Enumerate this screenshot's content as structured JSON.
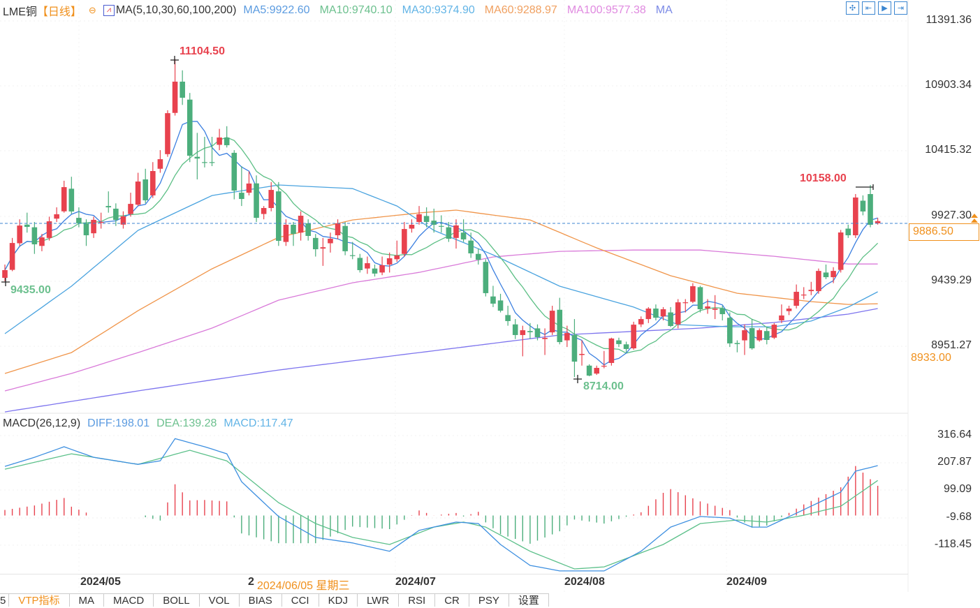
{
  "header": {
    "symbol": "LME铜",
    "period": "【日线】",
    "collapse_icon": "minus-circle-icon",
    "ma_icon": "ma-chart-icon",
    "ma_params": "MA(5,10,30,60,100,200)",
    "ma_values": [
      {
        "label": "MA5:9922.60",
        "color": "#5b9be0"
      },
      {
        "label": "MA10:9740.10",
        "color": "#6cc08e"
      },
      {
        "label": "MA30:9374.90",
        "color": "#62b4e6"
      },
      {
        "label": "MA60:9288.97",
        "color": "#f0a060"
      },
      {
        "label": "MA100:9577.38",
        "color": "#e08ae0"
      },
      {
        "label": "MA",
        "color": "#7b8ae6"
      }
    ]
  },
  "toolbar": [
    "crosshair-icon",
    "zoom-start-icon",
    "play-icon",
    "jump-end-icon"
  ],
  "macd_header": {
    "title": "MACD(26,12,9)",
    "diff": "DIFF:198.01",
    "dea": "DEA:139.28",
    "macd": "MACD:117.47"
  },
  "price_axis": {
    "ticks": [
      "11391.36",
      "10903.34",
      "10415.32",
      "9927.30",
      "9439.29",
      "8951.27"
    ],
    "current": "9886.50",
    "secondary": "8933.00"
  },
  "macd_axis": {
    "ticks": [
      "316.64",
      "207.87",
      "99.09",
      "-9.68",
      "-118.45"
    ]
  },
  "annotations": {
    "high": "11104.50",
    "low_start": "9435.00",
    "low": "8714.00",
    "recent_high": "10158.00"
  },
  "dates": {
    "may": "2024/05",
    "jun_partial": "2",
    "crosshair": "2024/06/05 星期三",
    "jul": "2024/07",
    "aug": "2024/08",
    "sep": "2024/09"
  },
  "tabs": [
    "5",
    "VTP指标",
    "MA",
    "MACD",
    "BOLL",
    "VOL",
    "BIAS",
    "CCI",
    "KDJ",
    "LWR",
    "RSI",
    "CR",
    "PSY",
    "设置"
  ],
  "colors": {
    "up": "#e8424e",
    "down": "#4cae7c",
    "diff": "#3d8fe0",
    "dea": "#5cc08a",
    "ma30": "#4aa3df",
    "ma60": "#f0954a",
    "ma100": "#d97ad9",
    "ma200": "#7d74ee",
    "ma5": "#3b7fe0",
    "ma10": "#5cbf85"
  },
  "chart_data": {
    "type": "candlestick",
    "title": "LME铜 日线",
    "ylim": [
      8500,
      11450
    ],
    "candles": [
      [
        9460,
        9560,
        9435,
        9518
      ],
      [
        9520,
        9760,
        9510,
        9722
      ],
      [
        9720,
        9900,
        9700,
        9853
      ],
      [
        9860,
        9950,
        9800,
        9843
      ],
      [
        9840,
        9880,
        9640,
        9712
      ],
      [
        9700,
        9790,
        9660,
        9764
      ],
      [
        9760,
        9920,
        9740,
        9885
      ],
      [
        9905,
        9990,
        9880,
        9938
      ],
      [
        9960,
        10190,
        9950,
        10142
      ],
      [
        10130,
        10220,
        9940,
        9959
      ],
      [
        9911,
        9990,
        9840,
        9870
      ],
      [
        9870,
        9900,
        9700,
        9780
      ],
      [
        9795,
        9920,
        9760,
        9896
      ],
      [
        9875,
        9950,
        9830,
        9880
      ],
      [
        10000,
        10110,
        9950,
        9990
      ],
      [
        9980,
        10020,
        9850,
        9895
      ],
      [
        9860,
        9960,
        9830,
        9922
      ],
      [
        9940,
        10100,
        9920,
        10016
      ],
      [
        10010,
        10250,
        10000,
        10184
      ],
      [
        10200,
        10280,
        10020,
        10043
      ],
      [
        10080,
        10330,
        10060,
        10263
      ],
      [
        10280,
        10420,
        10250,
        10352
      ],
      [
        10390,
        10720,
        10370,
        10698
      ],
      [
        10700,
        11104.5,
        10680,
        10935
      ],
      [
        10935,
        11020,
        10760,
        10814
      ],
      [
        10800,
        10850,
        10330,
        10378
      ],
      [
        10370,
        10550,
        10200,
        10357
      ],
      [
        10330,
        10520,
        10290,
        10326
      ],
      [
        10330,
        10520,
        10300,
        10326
      ],
      [
        10460,
        10580,
        10420,
        10515
      ],
      [
        10515,
        10600,
        10440,
        10457
      ],
      [
        10400,
        10420,
        10050,
        10116
      ],
      [
        10100,
        10300,
        10000,
        10053
      ],
      [
        10100,
        10260,
        10080,
        10169
      ],
      [
        10170,
        10230,
        9880,
        9911
      ],
      [
        9940,
        10000,
        9900,
        9985
      ],
      [
        9985,
        10180,
        9960,
        10121
      ],
      [
        10110,
        10180,
        9700,
        9738
      ],
      [
        9730,
        9900,
        9700,
        9859
      ],
      [
        9859,
        9880,
        9700,
        9790
      ],
      [
        9800,
        9960,
        9740,
        9927
      ],
      [
        9870,
        9900,
        9740,
        9775
      ],
      [
        9760,
        9790,
        9620,
        9675
      ],
      [
        9680,
        9760,
        9550,
        9690
      ],
      [
        9720,
        9800,
        9650,
        9754
      ],
      [
        9780,
        9900,
        9750,
        9870
      ],
      [
        9850,
        9880,
        9630,
        9660
      ],
      [
        9630,
        9730,
        9600,
        9628
      ],
      [
        9610,
        9640,
        9500,
        9518
      ],
      [
        9530,
        9620,
        9490,
        9570
      ],
      [
        9530,
        9560,
        9470,
        9492
      ],
      [
        9500,
        9620,
        9480,
        9555
      ],
      [
        9560,
        9650,
        9500,
        9607
      ],
      [
        9600,
        9740,
        9580,
        9628
      ],
      [
        9640,
        9880,
        9620,
        9827
      ],
      [
        9830,
        9900,
        9800,
        9859
      ],
      [
        9880,
        10000,
        9860,
        9938
      ],
      [
        9925,
        9990,
        9840,
        9880
      ],
      [
        9890,
        9980,
        9800,
        9859
      ],
      [
        9850,
        9930,
        9800,
        9848
      ],
      [
        9840,
        9880,
        9730,
        9754
      ],
      [
        9760,
        9900,
        9680,
        9854
      ],
      [
        9800,
        9900,
        9730,
        9749
      ],
      [
        9740,
        9800,
        9610,
        9644
      ],
      [
        9640,
        9680,
        9560,
        9596
      ],
      [
        9580,
        9600,
        9320,
        9345
      ],
      [
        9320,
        9400,
        9240,
        9266
      ],
      [
        9290,
        9340,
        9200,
        9213
      ],
      [
        9180,
        9250,
        9100,
        9135
      ],
      [
        9110,
        9150,
        9000,
        9030
      ],
      [
        9030,
        9100,
        8870,
        9066
      ],
      [
        9060,
        9120,
        9000,
        9051
      ],
      [
        9080,
        9110,
        8990,
        9014
      ],
      [
        9000,
        9080,
        8880,
        9009
      ],
      [
        9050,
        9250,
        9030,
        9213
      ],
      [
        9220,
        9310,
        8960,
        8977
      ],
      [
        8990,
        9100,
        8940,
        9045
      ],
      [
        9030,
        9150,
        8714,
        8830
      ],
      [
        8880,
        8990,
        8800,
        8888
      ],
      [
        8800,
        8810,
        8720,
        8725
      ],
      [
        8740,
        8800,
        8730,
        8783
      ],
      [
        8795,
        8910,
        8780,
        8799
      ],
      [
        8820,
        9010,
        8800,
        9004
      ],
      [
        8990,
        9010,
        8940,
        8962
      ],
      [
        8960,
        8980,
        8900,
        8925
      ],
      [
        8930,
        9130,
        8920,
        9108
      ],
      [
        9110,
        9170,
        9090,
        9150
      ],
      [
        9150,
        9240,
        9120,
        9229
      ],
      [
        9229,
        9260,
        9140,
        9160
      ],
      [
        9170,
        9240,
        9140,
        9224
      ],
      [
        9200,
        9240,
        9090,
        9098
      ],
      [
        9110,
        9300,
        9080,
        9276
      ],
      [
        9270,
        9300,
        9200,
        9276
      ],
      [
        9280,
        9420,
        9270,
        9397
      ],
      [
        9390,
        9400,
        9200,
        9224
      ],
      [
        9230,
        9300,
        9190,
        9245
      ],
      [
        9220,
        9330,
        9150,
        9229
      ],
      [
        9230,
        9250,
        9140,
        9187
      ],
      [
        9160,
        9200,
        8940,
        8967
      ],
      [
        8970,
        8990,
        8900,
        8962
      ],
      [
        8990,
        9110,
        8880,
        9066
      ],
      [
        9082,
        9150,
        8920,
        8930
      ],
      [
        8990,
        9080,
        8980,
        9066
      ],
      [
        9060,
        9090,
        8960,
        8993
      ],
      [
        9010,
        9120,
        9000,
        9108
      ],
      [
        9140,
        9260,
        9120,
        9177
      ],
      [
        9210,
        9250,
        9180,
        9229
      ],
      [
        9250,
        9410,
        9230,
        9355
      ],
      [
        9330,
        9390,
        9300,
        9334
      ],
      [
        9360,
        9430,
        9330,
        9370
      ],
      [
        9360,
        9530,
        9340,
        9512
      ],
      [
        9500,
        9560,
        9450,
        9465
      ],
      [
        9465,
        9540,
        9420,
        9512
      ],
      [
        9520,
        9820,
        9500,
        9801
      ],
      [
        9830,
        9860,
        9760,
        9780
      ],
      [
        9780,
        10090,
        9760,
        10064
      ],
      [
        10040,
        10080,
        9930,
        9959
      ],
      [
        10090,
        10158,
        9840,
        9859
      ],
      [
        9870,
        9910,
        9860,
        9886.5
      ]
    ],
    "ma_series": {
      "ma30": [
        [
          0,
          9040
        ],
        [
          9,
          9397
        ],
        [
          18,
          9817
        ],
        [
          28,
          10079
        ],
        [
          37,
          10158
        ],
        [
          47,
          10131
        ],
        [
          53,
          10000
        ],
        [
          58,
          9817
        ],
        [
          66,
          9633
        ],
        [
          75,
          9397
        ],
        [
          85,
          9240
        ],
        [
          91,
          9108
        ],
        [
          98,
          9092
        ],
        [
          104,
          9092
        ],
        [
          109,
          9135
        ],
        [
          114,
          9240
        ],
        [
          118,
          9355
        ]
      ],
      "ma60": [
        [
          0,
          8741
        ],
        [
          9,
          8898
        ],
        [
          18,
          9213
        ],
        [
          28,
          9528
        ],
        [
          37,
          9764
        ],
        [
          47,
          9895
        ],
        [
          56,
          9948
        ],
        [
          61,
          9969
        ],
        [
          71,
          9895
        ],
        [
          80,
          9685
        ],
        [
          90,
          9476
        ],
        [
          99,
          9344
        ],
        [
          109,
          9281
        ],
        [
          114,
          9260
        ],
        [
          118,
          9265
        ]
      ],
      "ma100": [
        [
          0,
          8610
        ],
        [
          9,
          8741
        ],
        [
          18,
          8898
        ],
        [
          28,
          9082
        ],
        [
          37,
          9292
        ],
        [
          47,
          9423
        ],
        [
          56,
          9501
        ],
        [
          66,
          9617
        ],
        [
          75,
          9659
        ],
        [
          85,
          9669
        ],
        [
          94,
          9669
        ],
        [
          104,
          9622
        ],
        [
          114,
          9564
        ],
        [
          118,
          9564
        ]
      ],
      "ma200": [
        [
          0,
          8452
        ],
        [
          18,
          8610
        ],
        [
          37,
          8767
        ],
        [
          56,
          8898
        ],
        [
          75,
          9030
        ],
        [
          94,
          9082
        ],
        [
          104,
          9124
        ],
        [
          114,
          9187
        ],
        [
          118,
          9229
        ]
      ]
    },
    "macd": {
      "params": [
        26,
        12,
        9
      ],
      "diff": [
        [
          0,
          195
        ],
        [
          4,
          231
        ],
        [
          8,
          273
        ],
        [
          12,
          231
        ],
        [
          18,
          203
        ],
        [
          21,
          217
        ],
        [
          23,
          305
        ],
        [
          27,
          273
        ],
        [
          30,
          245
        ],
        [
          32,
          134
        ],
        [
          37,
          -4
        ],
        [
          42,
          -87
        ],
        [
          47,
          -109
        ],
        [
          52,
          -142
        ],
        [
          56,
          -59
        ],
        [
          61,
          -26
        ],
        [
          64,
          -32
        ],
        [
          67,
          -115
        ],
        [
          71,
          -198
        ],
        [
          75,
          -220
        ],
        [
          81,
          -220
        ],
        [
          86,
          -142
        ],
        [
          90,
          -46
        ],
        [
          94,
          -4
        ],
        [
          98,
          -10
        ],
        [
          101,
          -46
        ],
        [
          103,
          -46
        ],
        [
          108,
          23
        ],
        [
          113,
          93
        ],
        [
          115,
          176
        ],
        [
          118,
          198
        ]
      ],
      "dea": [
        [
          0,
          184
        ],
        [
          9,
          245
        ],
        [
          18,
          203
        ],
        [
          25,
          259
        ],
        [
          30,
          217
        ],
        [
          37,
          51
        ],
        [
          42,
          -32
        ],
        [
          47,
          -87
        ],
        [
          52,
          -115
        ],
        [
          58,
          -46
        ],
        [
          62,
          -26
        ],
        [
          65,
          -46
        ],
        [
          71,
          -142
        ],
        [
          77,
          -212
        ],
        [
          81,
          -204
        ],
        [
          89,
          -115
        ],
        [
          94,
          -32
        ],
        [
          99,
          -18
        ],
        [
          103,
          -26
        ],
        [
          108,
          1
        ],
        [
          113,
          37
        ],
        [
          118,
          139
        ]
      ],
      "histogram_rule": "2*(DIFF-DEA)"
    }
  }
}
